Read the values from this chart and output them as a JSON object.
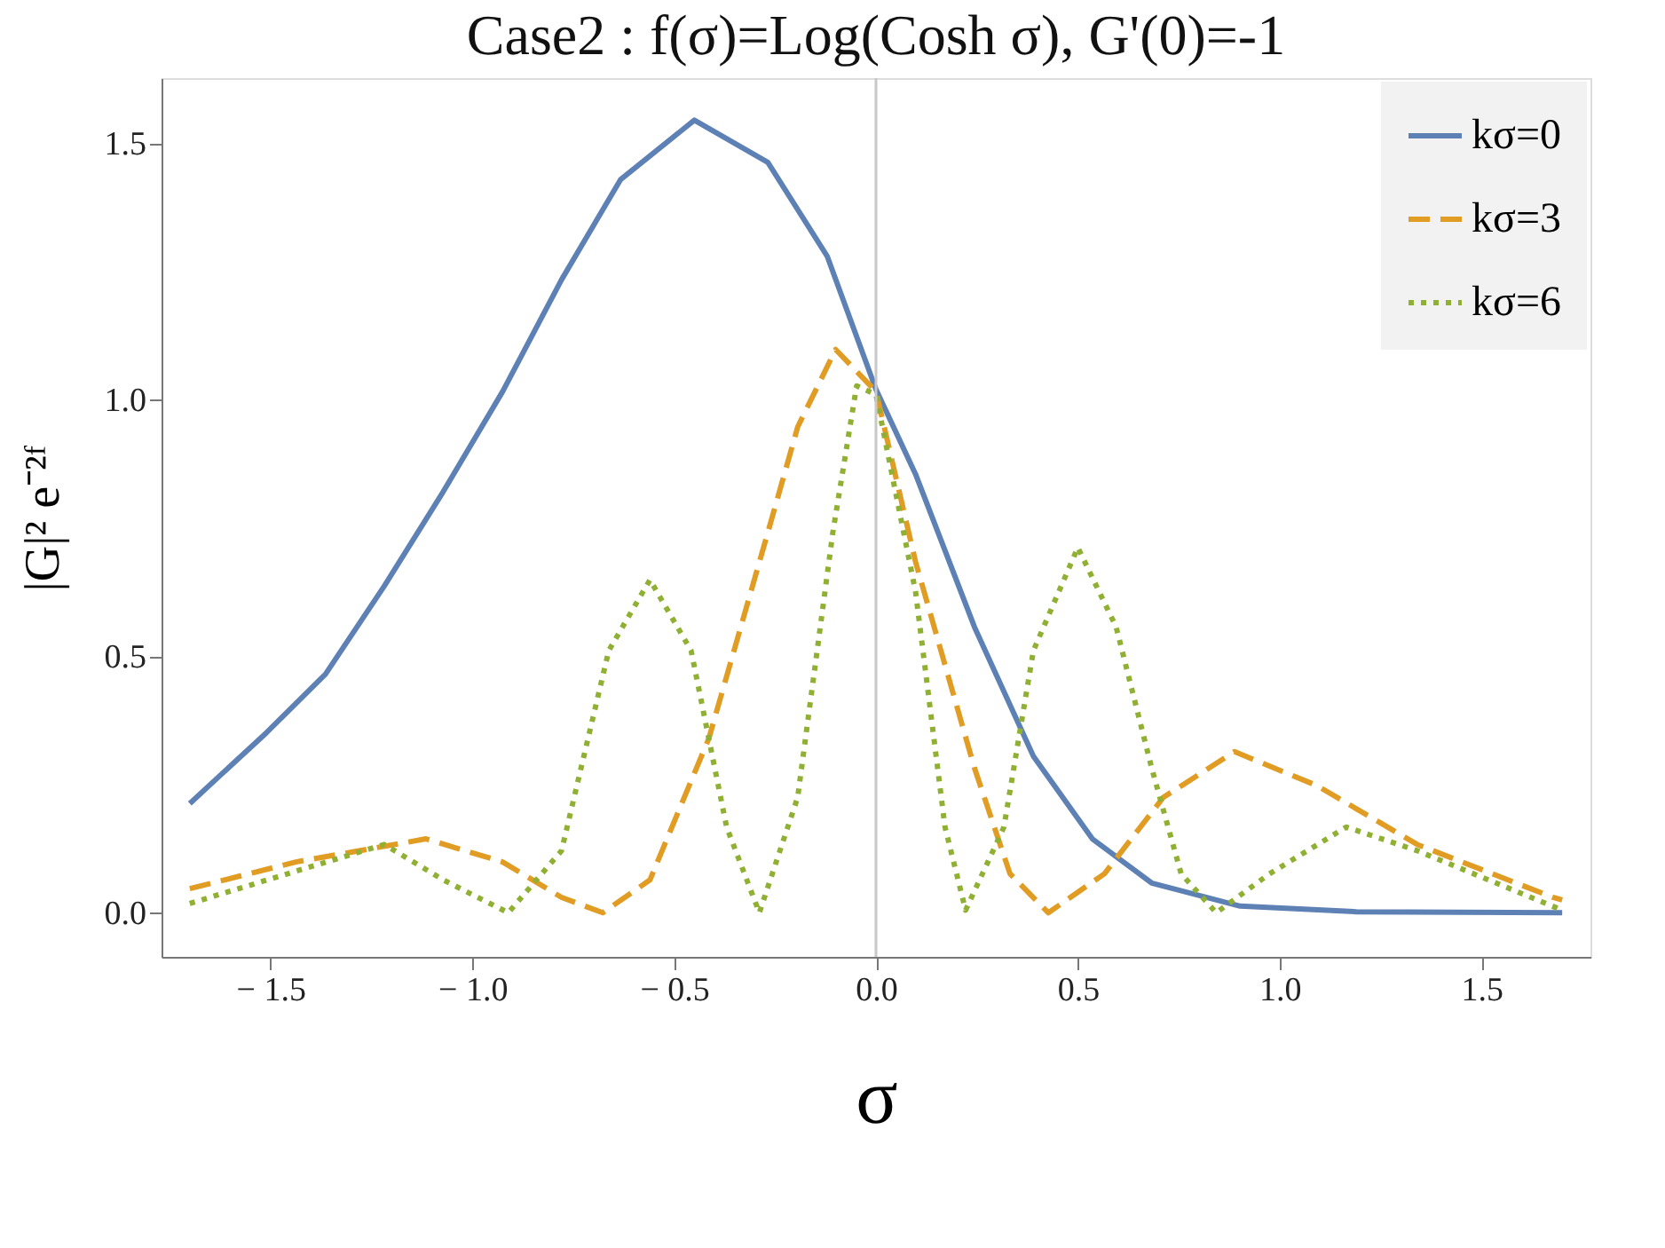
{
  "chart_data": {
    "type": "line",
    "title": "Case2 : f(σ)=Log(Cosh  σ),  G'(0)=-1",
    "xlabel": "σ",
    "ylabel": "|G|² e⁻²ᶠ",
    "xlim": [
      -1.77,
      1.77
    ],
    "ylim": [
      -0.086,
      1.627
    ],
    "xticks": [
      {
        "value": -1.5,
        "label": "− 1.5"
      },
      {
        "value": -1.0,
        "label": "− 1.0"
      },
      {
        "value": -0.5,
        "label": "− 0.5"
      },
      {
        "value": 0,
        "label": "0.0"
      },
      0.5,
      {
        "value": 1.0,
        "label": "1.0"
      },
      1.5
    ],
    "yticks": [
      {
        "value": 0,
        "label": "0.0"
      },
      0.5,
      {
        "value": 1.0,
        "label": "1.0"
      },
      1.5
    ],
    "grid": false,
    "legend": "top right",
    "marker": "none",
    "ref_lines": [
      {
        "axis": "x",
        "value": 0,
        "color": "#c8c8c8",
        "line_style": "solid"
      }
    ],
    "series": [
      {
        "name": "kσ=0",
        "color": "#5e81b5",
        "line_style": "solid",
        "x": [
          -1.7,
          -1.51,
          -1.364,
          -1.218,
          -1.072,
          -0.925,
          -0.779,
          -0.633,
          -0.45,
          -0.268,
          -0.121,
          0.0,
          0.098,
          0.244,
          0.39,
          0.536,
          0.683,
          0.902,
          1.19,
          1.7
        ],
        "values": [
          0.213,
          0.351,
          0.465,
          0.637,
          0.821,
          1.016,
          1.234,
          1.429,
          1.545,
          1.463,
          1.28,
          1.02,
          0.855,
          0.557,
          0.305,
          0.144,
          0.058,
          0.013,
          0.002,
          0.0
        ]
      },
      {
        "name": "kσ=3",
        "color": "#e19c24",
        "line_style": "dashed",
        "x": [
          -1.7,
          -1.437,
          -1.115,
          -0.925,
          -0.779,
          -0.677,
          -0.56,
          -0.414,
          -0.268,
          -0.194,
          -0.1,
          0.0,
          0.098,
          0.244,
          0.332,
          0.427,
          0.566,
          0.712,
          0.888,
          1.092,
          1.341,
          1.677,
          1.7
        ],
        "values": [
          0.047,
          0.099,
          0.144,
          0.099,
          0.03,
          0.0,
          0.064,
          0.34,
          0.741,
          0.947,
          1.098,
          1.016,
          0.684,
          0.282,
          0.076,
          0.0,
          0.076,
          0.225,
          0.314,
          0.248,
          0.133,
          0.03,
          0.025
        ]
      },
      {
        "name": "kσ=6",
        "color": "#8fb032",
        "line_style": "dotted",
        "x": [
          -1.7,
          -1.437,
          -1.218,
          -1.072,
          -0.911,
          -0.779,
          -0.662,
          -0.56,
          -0.458,
          -0.37,
          -0.289,
          -0.194,
          -0.107,
          -0.048,
          0.0,
          0.098,
          0.171,
          0.222,
          0.317,
          0.39,
          0.5,
          0.595,
          0.683,
          0.756,
          0.843,
          0.975,
          1.165,
          1.341,
          1.7
        ],
        "values": [
          0.018,
          0.081,
          0.133,
          0.064,
          0.0,
          0.121,
          0.511,
          0.649,
          0.511,
          0.167,
          0.0,
          0.225,
          0.741,
          1.027,
          1.01,
          0.626,
          0.167,
          0.005,
          0.167,
          0.511,
          0.712,
          0.557,
          0.282,
          0.076,
          0.0,
          0.076,
          0.167,
          0.121,
          0.005
        ]
      }
    ]
  }
}
